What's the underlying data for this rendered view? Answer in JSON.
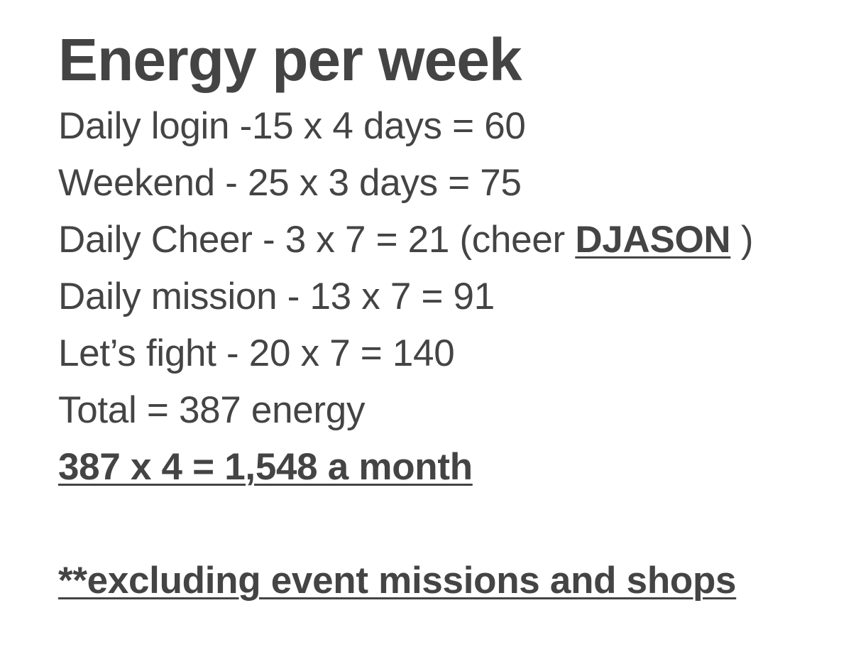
{
  "title": "Energy per week",
  "lines": {
    "daily_login": "Daily login -15 x 4 days = 60",
    "weekend": "Weekend - 25 x 3 days = 75",
    "daily_cheer_prefix": "Daily Cheer - 3 x 7 = 21 (cheer ",
    "daily_cheer_name": "DJASON",
    "daily_cheer_suffix": " )",
    "daily_mission": "Daily mission - 13 x 7 = 91",
    "lets_fight": "Let’s fight - 20 x 7 = 140",
    "total": "Total = 387 energy",
    "monthly": "387 x 4 = 1,548 a month",
    "footnote": "**excluding event missions and shops"
  },
  "colors": {
    "text": "#444444",
    "background": "#ffffff"
  }
}
